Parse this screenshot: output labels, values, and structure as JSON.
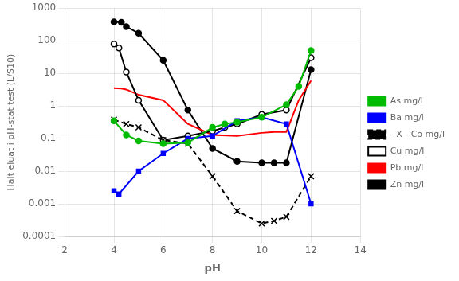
{
  "chart_data": {
    "type": "line",
    "xlabel": "pH",
    "ylabel": "Halt eluat i pH-stat test (L/S10)",
    "log": "y",
    "grid": true,
    "legend": "right",
    "xlim": [
      2,
      14
    ],
    "xticks": [
      2,
      4,
      6,
      8,
      10,
      12,
      14
    ],
    "ylim": [
      0.0001,
      1000
    ],
    "yticks": [
      0.0001,
      0.001,
      0.01,
      0.1,
      1,
      10,
      100,
      1000
    ],
    "series": [
      {
        "name": "As mg/l",
        "color": "#00bb00",
        "marker": "circle",
        "line_style": "solid",
        "x": [
          4.0,
          4.5,
          5.0,
          6.0,
          7.0,
          8.0,
          8.5,
          9.0,
          10.0,
          11.0,
          11.5,
          12.0
        ],
        "values": [
          0.35,
          0.13,
          0.085,
          0.07,
          0.075,
          0.22,
          0.28,
          0.32,
          0.45,
          1.1,
          4.0,
          50.0
        ]
      },
      {
        "name": "Ba mg/l",
        "color": "#0000ff",
        "marker": "square",
        "line_style": "solid",
        "x": [
          4.0,
          4.2,
          5.0,
          6.0,
          7.0,
          8.0,
          9.0,
          10.0,
          11.0,
          12.0
        ],
        "values": [
          0.0025,
          0.002,
          0.01,
          0.035,
          0.1,
          0.12,
          0.35,
          0.45,
          0.28,
          0.001
        ]
      },
      {
        "name": "- X - Co mg/l",
        "color": "#000000",
        "marker": "x",
        "line_style": "dashed",
        "x": [
          4.0,
          4.5,
          5.0,
          6.0,
          7.0,
          8.0,
          9.0,
          10.0,
          10.5,
          11.0,
          12.0
        ],
        "values": [
          0.38,
          0.28,
          0.22,
          0.09,
          0.07,
          0.007,
          0.0006,
          0.00025,
          0.0003,
          0.0004,
          0.007
        ]
      },
      {
        "name": "Cu mg/l",
        "color": "#000000",
        "marker": "open_circle",
        "line_style": "solid",
        "x": [
          4.0,
          4.2,
          4.5,
          5.0,
          6.0,
          7.0,
          8.0,
          8.5,
          9.0,
          10.0,
          11.0,
          12.0
        ],
        "values": [
          80.0,
          60.0,
          11.0,
          1.5,
          0.09,
          0.12,
          0.17,
          0.22,
          0.28,
          0.55,
          0.75,
          30.0
        ]
      },
      {
        "name": "Pb mg/l",
        "color": "#ff0000",
        "marker": "none",
        "line_style": "solid",
        "x": [
          4.0,
          4.3,
          4.5,
          5.0,
          6.0,
          7.0,
          8.0,
          9.0,
          10.0,
          10.5,
          11.0,
          11.5,
          12.0
        ],
        "values": [
          3.5,
          3.4,
          3.2,
          2.2,
          1.5,
          0.28,
          0.13,
          0.12,
          0.15,
          0.16,
          0.16,
          1.5,
          6.0
        ]
      },
      {
        "name": "Zn mg/l",
        "color": "#000000",
        "marker": "circle",
        "line_style": "solid",
        "x": [
          4.0,
          4.3,
          4.5,
          5.0,
          6.0,
          7.0,
          8.0,
          9.0,
          10.0,
          10.5,
          11.0,
          12.0
        ],
        "values": [
          380.0,
          370.0,
          270.0,
          170.0,
          25.0,
          0.75,
          0.05,
          0.02,
          0.018,
          0.018,
          0.018,
          13.0
        ]
      }
    ]
  }
}
